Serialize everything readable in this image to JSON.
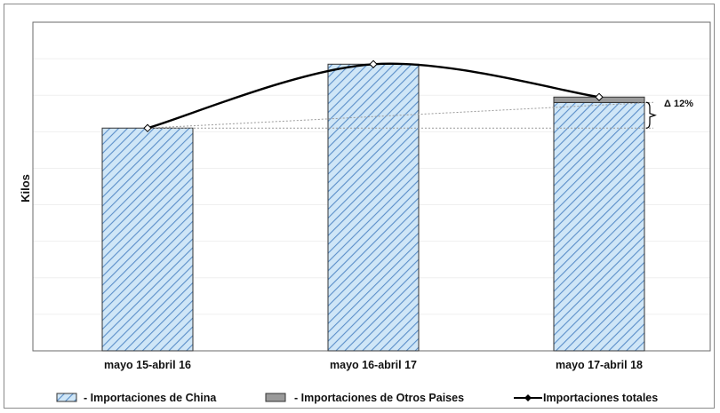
{
  "chart_data": {
    "type": "bar",
    "categories": [
      "mayo 15-abril 16",
      "mayo 16-abril 17",
      "mayo 17-abril 18"
    ],
    "series": [
      {
        "name": "- Importaciones de China",
        "kind": "bar",
        "values": [
          61,
          78.5,
          68
        ]
      },
      {
        "name": "- Importaciones de Otros Paises",
        "kind": "bar-stacked",
        "values": [
          0,
          0,
          1.5
        ]
      },
      {
        "name": "Importaciones totales",
        "kind": "line",
        "values": [
          61,
          78.5,
          69.5
        ]
      }
    ],
    "ylabel": "Kilos",
    "ylim": [
      0,
      90
    ],
    "y_ticks_shown": false,
    "grid": "horizontal-faint",
    "legend_position": "bottom",
    "annotation": "Δ 12%",
    "colors": {
      "china_fill": "#cfe6f7",
      "china_hatch": "#5b8fc9",
      "otros": "#9a9a9a",
      "line": "#000000",
      "dotted": "#9a9a9a"
    }
  }
}
